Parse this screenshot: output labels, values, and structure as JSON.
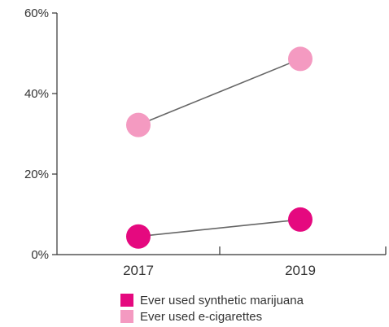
{
  "chart_data": {
    "type": "line",
    "categories": [
      "2017",
      "2019"
    ],
    "series": [
      {
        "name": "Ever used synthetic marijuana",
        "values": [
          4.5,
          8.7
        ],
        "color": "#e5097f"
      },
      {
        "name": "Ever used e-cigarettes",
        "values": [
          32.2,
          48.6
        ],
        "color": "#f49ac1"
      }
    ],
    "ylim": [
      0,
      60
    ],
    "yticks": [
      {
        "value": 0,
        "label": "0%"
      },
      {
        "value": 20,
        "label": "20%"
      },
      {
        "value": 40,
        "label": "40%"
      },
      {
        "value": 60,
        "label": "60%"
      }
    ],
    "title": "",
    "xlabel": "",
    "ylabel": "",
    "grid": false,
    "legend_position": "bottom",
    "line_color": "#666666"
  }
}
